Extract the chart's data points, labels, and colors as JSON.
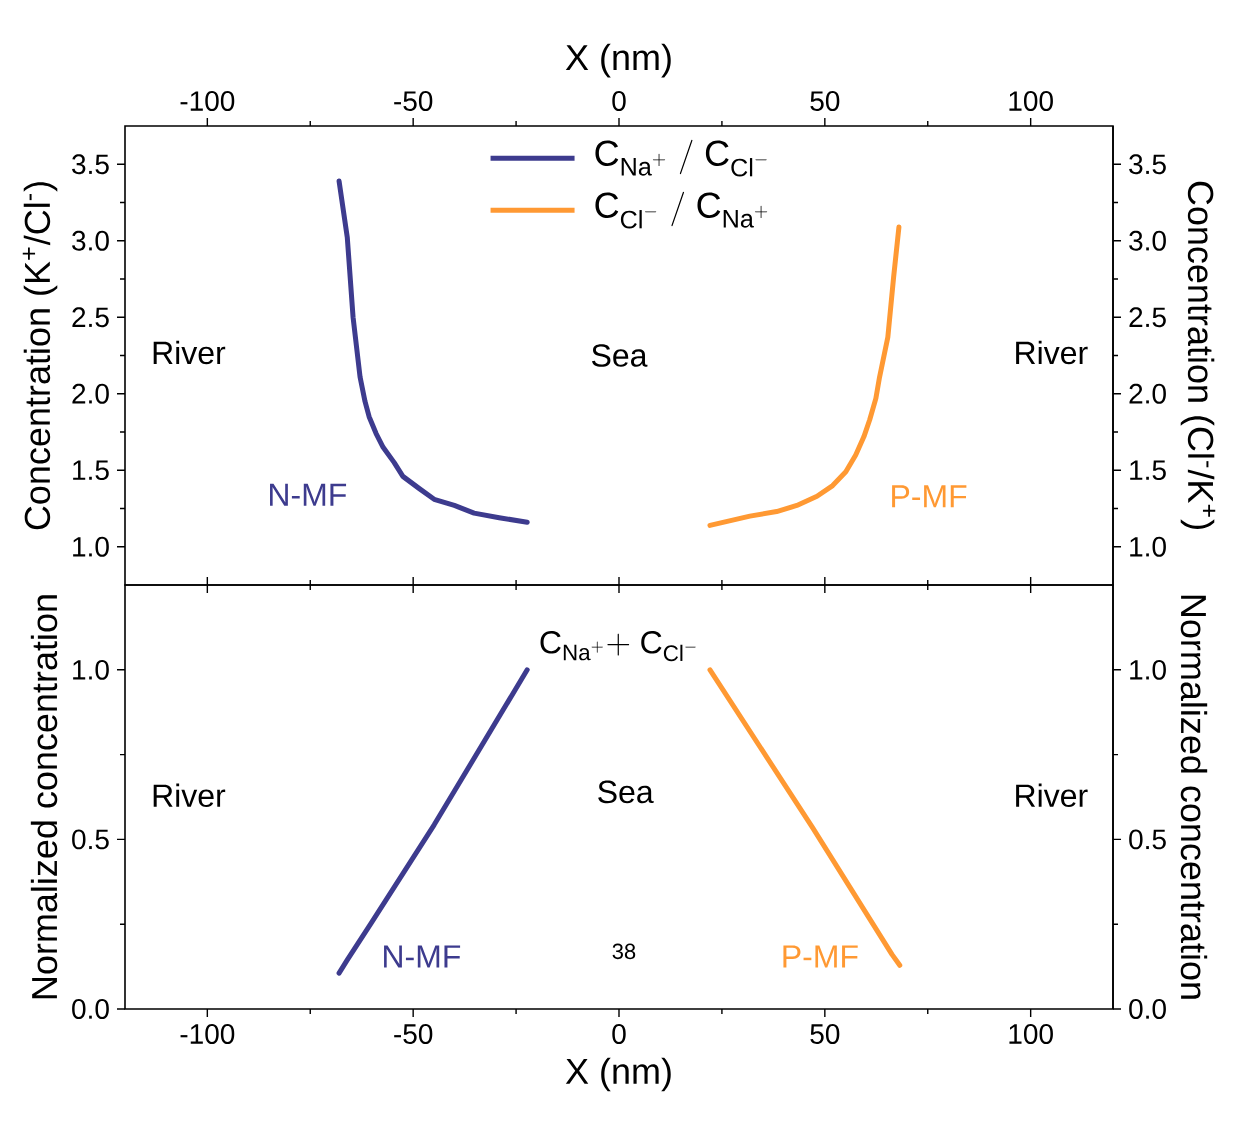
{
  "chart_data": [
    {
      "type": "line",
      "xlabel": "X (nm)",
      "ylabel": "Concentration (K$^{+}$/Cl$^{-}$)",
      "y2label": "Concentration (Cl$^{-}$/K$^{+}$)",
      "xlim": [
        -120,
        120
      ],
      "xticks": [
        -100,
        -50,
        0,
        50,
        100
      ],
      "ylim": [
        0.75,
        3.75
      ],
      "yticks": [
        {
          "value": 1,
          "label": "1.0"
        },
        1.5,
        {
          "value": 2,
          "label": "2.0"
        },
        2.5,
        {
          "value": 3,
          "label": "3.0"
        },
        3.5
      ],
      "y2lim": [
        0.75,
        3.75
      ],
      "y2ticks": [
        {
          "value": 1,
          "label": "1.0"
        },
        1.5,
        {
          "value": 2,
          "label": "2.0"
        },
        2.5,
        {
          "value": 3,
          "label": "3.0"
        },
        3.5
      ],
      "legend": "top",
      "series": [
        {
          "name": "\\mathrm{C}_{\\mathrm{Na}^{\\mathrm{+}}}\\ /\\ \\mathrm{C}_{\\mathrm{Cl}^{\\mathrm{-}}}",
          "color": "#3d3b8e",
          "x": [
            -68.0,
            -66.0,
            -64.6,
            -62.9,
            -61.7,
            -60.7,
            -59.0,
            -57.3,
            -54.6,
            -52.5,
            -48.5,
            -44.9,
            -40.0,
            -35.2,
            -29.1,
            -22.3
          ],
          "values": [
            3.39,
            3.02,
            2.5,
            2.11,
            1.95,
            1.85,
            1.74,
            1.65,
            1.55,
            1.46,
            1.38,
            1.31,
            1.27,
            1.22,
            1.19,
            1.16
          ]
        },
        {
          "name": "\\mathrm{C}_{\\mathrm{Cl}^{\\mathrm{-}}}\\ /\\ \\mathrm{C}_{\\mathrm{Na}^{\\mathrm{+}}}",
          "color": "#ff9933",
          "x": [
            22.1,
            31.8,
            38.3,
            43.2,
            48.1,
            51.9,
            55.1,
            57.5,
            59.5,
            60.9,
            62.4,
            63.3,
            65.3,
            66.7,
            68.0
          ],
          "values": [
            1.14,
            1.2,
            1.23,
            1.27,
            1.33,
            1.4,
            1.49,
            1.6,
            1.72,
            1.83,
            1.97,
            2.11,
            2.37,
            2.76,
            3.09
          ]
        }
      ],
      "annotations": [
        "River",
        "Sea",
        "River",
        "N-MF",
        "P-MF"
      ]
    },
    {
      "type": "line",
      "xlabel": "X (nm)",
      "ylabel": "Normalized concentration",
      "y2label": "Normalized concentration",
      "xlim": [
        -120,
        120
      ],
      "xticks": [
        -100,
        -50,
        0,
        50,
        100
      ],
      "ylim": [
        0,
        1.25
      ],
      "yticks": [
        {
          "value": 0,
          "label": "0.0"
        },
        0.5,
        {
          "value": 1,
          "label": "1.0"
        }
      ],
      "y2lim": [
        0,
        1.25
      ],
      "y2ticks": [
        {
          "value": 0,
          "label": "0.0"
        },
        0.5,
        {
          "value": 1,
          "label": "1.0"
        }
      ],
      "series": [
        {
          "color": "#3d3b8e",
          "x": [
            -68.0,
            -66.0,
            -60.2,
            -44.9,
            -22.3
          ],
          "values": [
            0.106,
            0.145,
            0.253,
            0.543,
            1.0
          ]
        },
        {
          "color": "#ff9933",
          "x": [
            22.1,
            47.1,
            66.3,
            68.2
          ],
          "values": [
            1.0,
            0.533,
            0.161,
            0.129
          ]
        }
      ],
      "annotations": [
        "\\mathrm{C}_{\\mathrm{Na}^{\\mathrm{+}}}\\mathrm{+}\\ \\mathrm{C}_{\\mathrm{Cl}^{\\mathrm{-}}}",
        "River",
        "Sea",
        "River",
        "N-MF",
        "P-MF",
        "38"
      ]
    }
  ]
}
